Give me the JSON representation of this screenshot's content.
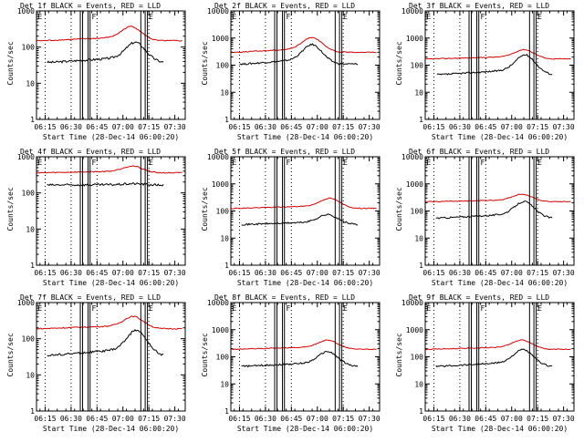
{
  "colors": {
    "events": "#000000",
    "lld": "#d40000",
    "background": "#ffffff"
  },
  "chart_data": [
    {
      "type": "line",
      "title": "Det 1f  BLACK = Events, RED = LLD",
      "ylabel": "Counts/sec",
      "xlabel": "Start Time (28-Dec-14 06:00:20)",
      "yscale": "log",
      "ylim": [
        1,
        1000
      ],
      "yticks": [
        "1",
        "10",
        "100",
        "1000"
      ],
      "yticks_values": [
        1,
        10,
        100,
        1000
      ],
      "xlim": [
        6.1667,
        7.6
      ],
      "xticks": [
        "06:15",
        "06:30",
        "06:45",
        "07:00",
        "07:15",
        "07:30"
      ],
      "xticks_values": [
        6.25,
        6.5,
        6.75,
        7.0,
        7.25,
        7.5
      ],
      "dotted_markers": [
        6.25,
        6.5,
        6.75,
        7.25
      ],
      "solid_markers": [
        6.589,
        6.611,
        6.664,
        6.683,
        7.172,
        7.214,
        7.236
      ],
      "marker_labels": [
        {
          "text": "E",
          "x": 6.17
        },
        {
          "text": "F",
          "x": 6.69
        },
        {
          "text": "E",
          "x": 7.24
        }
      ],
      "series": [
        {
          "name": "BLACK = Events",
          "start": 6.27,
          "end": 7.39,
          "baseline": 38,
          "peak": 140,
          "peak_at": 7.12
        },
        {
          "name": "RED = LLD",
          "start": 6.17,
          "end": 7.57,
          "baseline": 150,
          "peak": 380,
          "peak_at": 7.08
        }
      ]
    },
    {
      "type": "line",
      "title": "Det 2f  BLACK = Events, RED = LLD",
      "ylabel": "Counts/sec",
      "xlabel": "Start Time (28-Dec-14 06:00:20)",
      "yscale": "log",
      "ylim": [
        1,
        10000
      ],
      "yticks": [
        "1",
        "10",
        "100",
        "1000",
        "10000"
      ],
      "yticks_values": [
        1,
        10,
        100,
        1000,
        10000
      ],
      "xlim": [
        6.1667,
        7.6
      ],
      "xticks": [
        "06:15",
        "06:30",
        "06:45",
        "07:00",
        "07:15",
        "07:30"
      ],
      "xticks_values": [
        6.25,
        6.5,
        6.75,
        7.0,
        7.25,
        7.5
      ],
      "dotted_markers": [
        6.25,
        6.5,
        6.75,
        7.25
      ],
      "solid_markers": [
        6.589,
        6.611,
        6.664,
        6.683,
        7.172,
        7.214,
        7.236
      ],
      "marker_labels": [
        {
          "text": "E",
          "x": 6.17
        },
        {
          "text": "F",
          "x": 6.69
        },
        {
          "text": "E",
          "x": 7.24
        }
      ],
      "series": [
        {
          "name": "BLACK = Events",
          "start": 6.25,
          "end": 7.39,
          "baseline": 110,
          "peak": 600,
          "peak_at": 6.95
        },
        {
          "name": "RED = LLD",
          "start": 6.17,
          "end": 7.57,
          "baseline": 300,
          "peak": 1100,
          "peak_at": 6.95
        }
      ]
    },
    {
      "type": "line",
      "title": "Det 3f  BLACK = Events, RED = LLD",
      "ylabel": "Counts/sec",
      "xlabel": "Start Time (28-Dec-14 06:00:20)",
      "yscale": "log",
      "ylim": [
        1,
        10000
      ],
      "yticks": [
        "1",
        "10",
        "100",
        "1000",
        "10000"
      ],
      "yticks_values": [
        1,
        10,
        100,
        1000,
        10000
      ],
      "xlim": [
        6.1667,
        7.6
      ],
      "xticks": [
        "06:15",
        "06:30",
        "06:45",
        "07:00",
        "07:15",
        "07:30"
      ],
      "xticks_values": [
        6.25,
        6.5,
        6.75,
        7.0,
        7.25,
        7.5
      ],
      "dotted_markers": [
        6.25,
        6.5,
        6.75,
        7.25
      ],
      "solid_markers": [
        6.589,
        6.611,
        6.664,
        6.683,
        7.172,
        7.214,
        7.236
      ],
      "marker_labels": [
        {
          "text": "E",
          "x": 6.17
        },
        {
          "text": "F",
          "x": 6.69
        },
        {
          "text": "E",
          "x": 7.24
        }
      ],
      "series": [
        {
          "name": "BLACK = Events",
          "start": 6.28,
          "end": 7.39,
          "baseline": 45,
          "peak": 250,
          "peak_at": 7.13
        },
        {
          "name": "RED = LLD",
          "start": 6.17,
          "end": 7.57,
          "baseline": 170,
          "peak": 380,
          "peak_at": 7.12
        }
      ]
    },
    {
      "type": "line",
      "title": "Det 4f  BLACK = Events, RED = LLD",
      "ylabel": "Counts/sec",
      "xlabel": "Start Time (28-Dec-14 06:00:20)",
      "yscale": "log",
      "ylim": [
        1,
        1000
      ],
      "yticks": [
        "1",
        "10",
        "100",
        "1000"
      ],
      "yticks_values": [
        1,
        10,
        100,
        1000
      ],
      "xlim": [
        6.1667,
        7.6
      ],
      "xticks": [
        "06:15",
        "06:30",
        "06:45",
        "07:00",
        "07:15",
        "07:30"
      ],
      "xticks_values": [
        6.25,
        6.5,
        6.75,
        7.0,
        7.25,
        7.5
      ],
      "dotted_markers": [
        6.25,
        6.5,
        6.75,
        7.25
      ],
      "solid_markers": [
        6.589,
        6.611,
        6.664,
        6.683,
        7.172,
        7.214,
        7.236
      ],
      "marker_labels": [
        {
          "text": "E",
          "x": 6.17
        },
        {
          "text": "F",
          "x": 6.69
        },
        {
          "text": "E",
          "x": 7.24
        }
      ],
      "series": [
        {
          "name": "BLACK = Events",
          "start": 6.27,
          "end": 7.39,
          "baseline": 165,
          "peak": 180,
          "peak_at": 7.1
        },
        {
          "name": "RED = LLD",
          "start": 6.17,
          "end": 7.57,
          "baseline": 360,
          "peak": 560,
          "peak_at": 7.09
        }
      ]
    },
    {
      "type": "line",
      "title": "Det 5f  BLACK = Events, RED = LLD",
      "ylabel": "Counts/sec",
      "xlabel": "Start Time (28-Dec-14 06:00:20)",
      "yscale": "log",
      "ylim": [
        1,
        10000
      ],
      "yticks": [
        "1",
        "10",
        "100",
        "1000",
        "10000"
      ],
      "yticks_values": [
        1,
        10,
        100,
        1000,
        10000
      ],
      "xlim": [
        6.1667,
        7.6
      ],
      "xticks": [
        "06:15",
        "06:30",
        "06:45",
        "07:00",
        "07:15",
        "07:30"
      ],
      "xticks_values": [
        6.25,
        6.5,
        6.75,
        7.0,
        7.25,
        7.5
      ],
      "dotted_markers": [
        6.25,
        6.5,
        6.75,
        7.25
      ],
      "solid_markers": [
        6.589,
        6.611,
        6.664,
        6.683,
        7.172,
        7.214,
        7.236
      ],
      "marker_labels": [
        {
          "text": "E",
          "x": 6.17
        },
        {
          "text": "F",
          "x": 6.69
        },
        {
          "text": "E",
          "x": 7.24
        }
      ],
      "series": [
        {
          "name": "BLACK = Events",
          "start": 6.27,
          "end": 7.39,
          "baseline": 32,
          "peak": 75,
          "peak_at": 7.1
        },
        {
          "name": "RED = LLD",
          "start": 6.17,
          "end": 7.57,
          "baseline": 125,
          "peak": 300,
          "peak_at": 7.12
        }
      ]
    },
    {
      "type": "line",
      "title": "Det 6f  BLACK = Events, RED = LLD",
      "ylabel": "Counts/sec",
      "xlabel": "Start Time (28-Dec-14 06:00:20)",
      "yscale": "log",
      "ylim": [
        1,
        10000
      ],
      "yticks": [
        "1",
        "10",
        "100",
        "1000",
        "10000"
      ],
      "yticks_values": [
        1,
        10,
        100,
        1000,
        10000
      ],
      "xlim": [
        6.1667,
        7.6
      ],
      "xticks": [
        "06:15",
        "06:30",
        "06:45",
        "07:00",
        "07:15",
        "07:30"
      ],
      "xticks_values": [
        6.25,
        6.5,
        6.75,
        7.0,
        7.25,
        7.5
      ],
      "dotted_markers": [
        6.25,
        6.5,
        6.75,
        7.25
      ],
      "solid_markers": [
        6.589,
        6.611,
        6.664,
        6.683,
        7.172,
        7.214,
        7.236
      ],
      "marker_labels": [
        {
          "text": "E",
          "x": 6.17
        },
        {
          "text": "F",
          "x": 6.69
        },
        {
          "text": "E",
          "x": 7.24
        }
      ],
      "series": [
        {
          "name": "BLACK = Events",
          "start": 6.27,
          "end": 7.39,
          "baseline": 55,
          "peak": 230,
          "peak_at": 7.12
        },
        {
          "name": "RED = LLD",
          "start": 6.17,
          "end": 7.57,
          "baseline": 220,
          "peak": 420,
          "peak_at": 7.1
        }
      ]
    },
    {
      "type": "line",
      "title": "Det 7f  BLACK = Events, RED = LLD",
      "ylabel": "Counts/sec",
      "xlabel": "Start Time (28-Dec-14 06:00:20)",
      "yscale": "log",
      "ylim": [
        1,
        1000
      ],
      "yticks": [
        "1",
        "10",
        "100",
        "1000"
      ],
      "yticks_values": [
        1,
        10,
        100,
        1000
      ],
      "xlim": [
        6.1667,
        7.6
      ],
      "xticks": [
        "06:15",
        "06:30",
        "06:45",
        "07:00",
        "07:15",
        "07:30"
      ],
      "xticks_values": [
        6.25,
        6.5,
        6.75,
        7.0,
        7.25,
        7.5
      ],
      "dotted_markers": [
        6.25,
        6.5,
        6.75,
        7.25
      ],
      "solid_markers": [
        6.589,
        6.611,
        6.664,
        6.683,
        7.172,
        7.214,
        7.236
      ],
      "marker_labels": [
        {
          "text": "E",
          "x": 6.17
        },
        {
          "text": "F",
          "x": 6.69
        },
        {
          "text": "E",
          "x": 7.24
        }
      ],
      "series": [
        {
          "name": "BLACK = Events",
          "start": 6.27,
          "end": 7.39,
          "baseline": 35,
          "peak": 180,
          "peak_at": 7.13
        },
        {
          "name": "RED = LLD",
          "start": 6.17,
          "end": 7.57,
          "baseline": 190,
          "peak": 420,
          "peak_at": 7.1
        }
      ]
    },
    {
      "type": "line",
      "title": "Det 8f  BLACK = Events, RED = LLD",
      "ylabel": "Counts/sec",
      "xlabel": "Start Time (28-Dec-14 06:00:20)",
      "yscale": "log",
      "ylim": [
        1,
        10000
      ],
      "yticks": [
        "1",
        "10",
        "100",
        "1000",
        "10000"
      ],
      "yticks_values": [
        1,
        10,
        100,
        1000,
        10000
      ],
      "xlim": [
        6.1667,
        7.6
      ],
      "xticks": [
        "06:15",
        "06:30",
        "06:45",
        "07:00",
        "07:15",
        "07:30"
      ],
      "xticks_values": [
        6.25,
        6.5,
        6.75,
        7.0,
        7.25,
        7.5
      ],
      "dotted_markers": [
        6.25,
        6.5,
        6.75,
        7.25
      ],
      "solid_markers": [
        6.589,
        6.611,
        6.664,
        6.683,
        7.172,
        7.214,
        7.236
      ],
      "marker_labels": [
        {
          "text": "E",
          "x": 6.17
        },
        {
          "text": "F",
          "x": 6.69
        },
        {
          "text": "E",
          "x": 7.24
        }
      ],
      "series": [
        {
          "name": "BLACK = Events",
          "start": 6.27,
          "end": 7.39,
          "baseline": 45,
          "peak": 160,
          "peak_at": 7.1
        },
        {
          "name": "RED = LLD",
          "start": 6.17,
          "end": 7.57,
          "baseline": 190,
          "peak": 420,
          "peak_at": 7.1
        }
      ]
    },
    {
      "type": "line",
      "title": "Det 9f  BLACK = Events, RED = LLD",
      "ylabel": "Counts/sec",
      "xlabel": "Start Time (28-Dec-14 06:00:20)",
      "yscale": "log",
      "ylim": [
        1,
        10000
      ],
      "yticks": [
        "1",
        "10",
        "100",
        "1000",
        "10000"
      ],
      "yticks_values": [
        1,
        10,
        100,
        1000,
        10000
      ],
      "xlim": [
        6.1667,
        7.6
      ],
      "xticks": [
        "06:15",
        "06:30",
        "06:45",
        "07:00",
        "07:15",
        "07:30"
      ],
      "xticks_values": [
        6.25,
        6.5,
        6.75,
        7.0,
        7.25,
        7.5
      ],
      "dotted_markers": [
        6.25,
        6.5,
        6.75,
        7.25
      ],
      "solid_markers": [
        6.589,
        6.611,
        6.664,
        6.683,
        7.172,
        7.214,
        7.236
      ],
      "marker_labels": [
        {
          "text": "E",
          "x": 6.17
        },
        {
          "text": "F",
          "x": 6.69
        },
        {
          "text": "E",
          "x": 7.24
        }
      ],
      "series": [
        {
          "name": "BLACK = Events",
          "start": 6.27,
          "end": 7.39,
          "baseline": 45,
          "peak": 190,
          "peak_at": 7.11
        },
        {
          "name": "RED = LLD",
          "start": 6.17,
          "end": 7.57,
          "baseline": 190,
          "peak": 420,
          "peak_at": 7.1
        }
      ]
    }
  ]
}
